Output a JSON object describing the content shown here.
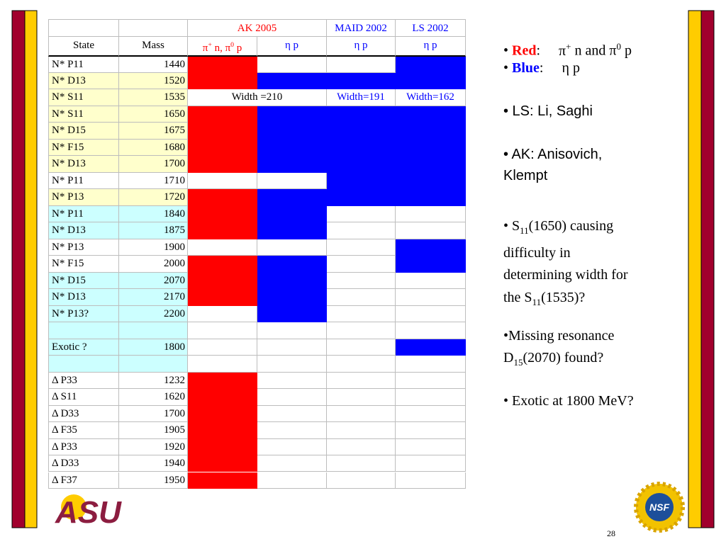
{
  "table": {
    "state_header": "State",
    "mass_header": "Mass",
    "groups": [
      {
        "name": "AK 2005",
        "color": "#ff0000",
        "span": 2
      },
      {
        "name": "MAID 2002",
        "color": "#0000ff",
        "span": 1
      },
      {
        "name": "LS 2002",
        "color": "#0000ff",
        "span": 1
      }
    ],
    "subs": [
      {
        "label": [
          {
            "t": "π"
          },
          {
            "t": "+",
            "s": "sup"
          },
          {
            "t": " n, π"
          },
          {
            "t": "0",
            "s": "sup"
          },
          {
            "t": " p"
          }
        ],
        "color": "#ff0000"
      },
      {
        "label": [
          {
            "t": "η p"
          }
        ],
        "color": "#0000ff"
      },
      {
        "label": [
          {
            "t": "η p"
          }
        ],
        "color": "#0000ff"
      },
      {
        "label": [
          {
            "t": "η p"
          }
        ],
        "color": "#0000ff"
      }
    ],
    "rows": [
      {
        "state": "N* P11",
        "mass": 1440,
        "shade": null,
        "cells": [
          "#ff0000",
          null,
          null,
          "#0000ff"
        ]
      },
      {
        "state": "N* D13",
        "mass": 1520,
        "shade": "#ffffcc",
        "cells": [
          "#ff0000",
          "#0000ff",
          "#0000ff",
          "#0000ff"
        ]
      },
      {
        "state": "N* S11",
        "mass": 1535,
        "shade": "#ffffcc",
        "widths": [
          {
            "text": "Width =210",
            "color": "#000000",
            "span": 2
          },
          {
            "text": "Width=191",
            "color": "#0000ff",
            "span": 1
          },
          {
            "text": "Width=162",
            "color": "#0000ff",
            "span": 1
          }
        ]
      },
      {
        "state": "N* S11",
        "mass": 1650,
        "shade": "#ffffcc",
        "cells": [
          "#ff0000",
          "#0000ff",
          "#0000ff",
          "#0000ff"
        ]
      },
      {
        "state": "N* D15",
        "mass": 1675,
        "shade": "#ffffcc",
        "cells": [
          "#ff0000",
          "#0000ff",
          "#0000ff",
          "#0000ff"
        ]
      },
      {
        "state": "N* F15",
        "mass": 1680,
        "shade": "#ffffcc",
        "cells": [
          "#ff0000",
          "#0000ff",
          "#0000ff",
          "#0000ff"
        ]
      },
      {
        "state": "N* D13",
        "mass": 1700,
        "shade": "#ffffcc",
        "cells": [
          "#ff0000",
          "#0000ff",
          "#0000ff",
          "#0000ff"
        ]
      },
      {
        "state": "N* P11",
        "mass": 1710,
        "shade": null,
        "cells": [
          null,
          null,
          "#0000ff",
          "#0000ff"
        ]
      },
      {
        "state": "N* P13",
        "mass": 1720,
        "shade": "#ffffcc",
        "cells": [
          "#ff0000",
          "#0000ff",
          "#0000ff",
          "#0000ff"
        ]
      },
      {
        "state": "N* P11",
        "mass": 1840,
        "shade": "#ccffff",
        "cells": [
          "#ff0000",
          "#0000ff",
          null,
          null
        ]
      },
      {
        "state": "N* D13",
        "mass": 1875,
        "shade": "#ccffff",
        "cells": [
          "#ff0000",
          "#0000ff",
          null,
          null
        ]
      },
      {
        "state": "N* P13",
        "mass": 1900,
        "shade": null,
        "cells": [
          null,
          null,
          null,
          "#0000ff"
        ]
      },
      {
        "state": "N* F15",
        "mass": 2000,
        "shade": null,
        "cells": [
          "#ff0000",
          "#0000ff",
          null,
          "#0000ff"
        ]
      },
      {
        "state": "N* D15",
        "mass": 2070,
        "shade": "#ccffff",
        "cells": [
          "#ff0000",
          "#0000ff",
          null,
          null
        ]
      },
      {
        "state": "N* D13",
        "mass": 2170,
        "shade": "#ccffff",
        "cells": [
          "#ff0000",
          "#0000ff",
          null,
          null
        ]
      },
      {
        "state": "N* P13?",
        "mass": 2200,
        "shade": "#ccffff",
        "cells": [
          null,
          "#0000ff",
          null,
          null
        ]
      },
      {
        "state": null,
        "mass": null,
        "shade": "#ccffff",
        "cells": [
          null,
          null,
          null,
          null
        ]
      },
      {
        "state": "Exotic ?",
        "mass": 1800,
        "shade": "#ccffff",
        "cells": [
          null,
          null,
          null,
          "#0000ff"
        ]
      },
      {
        "state": null,
        "mass": null,
        "shade": "#ccffff",
        "cells": [
          null,
          null,
          null,
          null
        ]
      },
      {
        "state": "Δ P33",
        "mass": 1232,
        "shade": null,
        "cells": [
          "#ff0000",
          null,
          null,
          null
        ]
      },
      {
        "state": "Δ S11",
        "mass": 1620,
        "shade": null,
        "cells": [
          "#ff0000",
          null,
          null,
          null
        ]
      },
      {
        "state": "Δ D33",
        "mass": 1700,
        "shade": null,
        "cells": [
          "#ff0000",
          null,
          null,
          null
        ]
      },
      {
        "state": "Δ F35",
        "mass": 1905,
        "shade": null,
        "cells": [
          "#ff0000",
          null,
          null,
          null
        ]
      },
      {
        "state": "Δ P33",
        "mass": 1920,
        "shade": null,
        "cells": [
          "#ff0000",
          null,
          null,
          null
        ]
      },
      {
        "state": "Δ D33",
        "mass": 1940,
        "shade": null,
        "cells": [
          "#ff0000",
          null,
          null,
          null
        ]
      },
      {
        "state": "Δ F37",
        "mass": 1950,
        "shade": null,
        "cells": [
          "#ff0000",
          null,
          null,
          null
        ]
      }
    ]
  },
  "bullets": [
    {
      "lines": [
        [
          {
            "t": "• "
          },
          {
            "t": "Red",
            "s": "b-red"
          },
          {
            "t": ":"
          },
          {
            "t": "π",
            "s": "tab"
          },
          {
            "t": "+",
            "s": "sup"
          },
          {
            "t": " n and π"
          },
          {
            "t": "0",
            "s": "sup"
          },
          {
            "t": " p"
          }
        ]
      ]
    },
    {
      "lines": [
        [
          {
            "t": "• "
          },
          {
            "t": "Blue",
            "s": "b-blue"
          },
          {
            "t": ":"
          },
          {
            "t": "η p",
            "s": "tab"
          }
        ]
      ]
    },
    {
      "font": "sans",
      "lines": [
        [
          {
            "t": "• LS: Li, Saghi"
          }
        ]
      ]
    },
    {
      "font": "sans",
      "lines": [
        [
          {
            "t": "• AK: Anisovich,"
          }
        ],
        [
          {
            "t": "Klempt"
          }
        ]
      ]
    },
    {
      "lines": [
        [
          {
            "t": "• S"
          },
          {
            "t": "11",
            "s": "sub"
          },
          {
            "t": "(1650) causing"
          }
        ],
        [
          {
            "t": "difficulty in"
          }
        ],
        [
          {
            "t": "determining width for"
          }
        ],
        [
          {
            "t": "the S"
          },
          {
            "t": "11",
            "s": "sub"
          },
          {
            "t": "(1535)?"
          }
        ]
      ]
    },
    {
      "lines": [
        [
          {
            "t": "•Missing resonance"
          }
        ],
        [
          {
            "t": "D"
          },
          {
            "t": "15",
            "s": "sub"
          },
          {
            "t": "(2070) found?"
          }
        ]
      ]
    },
    {
      "lines": [
        [
          {
            "t": "• Exotic at 1800 MeV?"
          }
        ]
      ]
    }
  ],
  "logos": {
    "asu": "ASU",
    "nsf": "NSF"
  },
  "page_number": "28"
}
